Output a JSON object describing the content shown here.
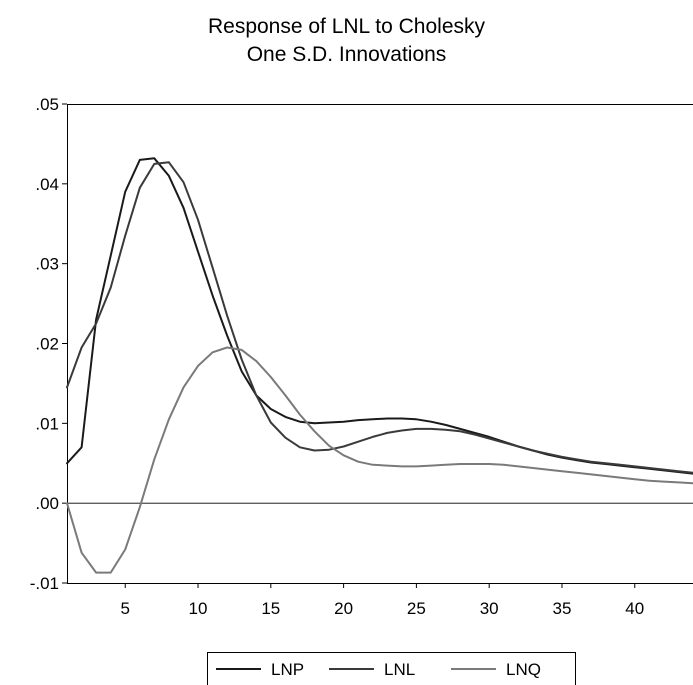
{
  "chart_data": {
    "type": "line",
    "title": "Response of LNL to Cholesky",
    "subtitle": "One S.D. Innovations",
    "xlabel": "",
    "ylabel": "",
    "xlim": [
      1,
      44
    ],
    "ylim": [
      -0.01,
      0.05
    ],
    "x_ticks": [
      5,
      10,
      15,
      20,
      25,
      30,
      35,
      40
    ],
    "x_tick_labels": [
      "5",
      "10",
      "15",
      "20",
      "25",
      "30",
      "35",
      "40"
    ],
    "y_ticks": [
      -0.01,
      0.0,
      0.01,
      0.02,
      0.03,
      0.04,
      0.05
    ],
    "y_tick_labels": [
      "-.01",
      ".00",
      ".01",
      ".02",
      ".03",
      ".04",
      ".05"
    ],
    "zero_line": true,
    "grid": false,
    "legend_position": "bottom-center",
    "series": [
      {
        "name": "LNP",
        "color": "#1a1a1a",
        "x": [
          1,
          2,
          3,
          4,
          5,
          6,
          7,
          8,
          9,
          10,
          11,
          12,
          13,
          14,
          15,
          16,
          17,
          18,
          19,
          20,
          21,
          22,
          23,
          24,
          25,
          26,
          27,
          28,
          29,
          30,
          31,
          32,
          33,
          34,
          35,
          36,
          37,
          38,
          39,
          40,
          41,
          42,
          43,
          44
        ],
        "y": [
          0.005,
          0.007,
          0.023,
          0.031,
          0.039,
          0.043,
          0.0432,
          0.041,
          0.037,
          0.0315,
          0.026,
          0.021,
          0.0165,
          0.0135,
          0.0118,
          0.0108,
          0.0102,
          0.01,
          0.0101,
          0.0102,
          0.0104,
          0.0105,
          0.0106,
          0.0106,
          0.0105,
          0.0102,
          0.0098,
          0.0093,
          0.0088,
          0.0083,
          0.0077,
          0.0071,
          0.0066,
          0.0061,
          0.0057,
          0.0054,
          0.0051,
          0.0049,
          0.0047,
          0.0045,
          0.0043,
          0.0041,
          0.0039,
          0.0037
        ]
      },
      {
        "name": "LNL",
        "color": "#3a3a3a",
        "x": [
          1,
          2,
          3,
          4,
          5,
          6,
          7,
          8,
          9,
          10,
          11,
          12,
          13,
          14,
          15,
          16,
          17,
          18,
          19,
          20,
          21,
          22,
          23,
          24,
          25,
          26,
          27,
          28,
          29,
          30,
          31,
          32,
          33,
          34,
          35,
          36,
          37,
          38,
          39,
          40,
          41,
          42,
          43,
          44
        ],
        "y": [
          0.0145,
          0.0195,
          0.0225,
          0.027,
          0.0335,
          0.0395,
          0.0425,
          0.0427,
          0.0402,
          0.0355,
          0.0295,
          0.0235,
          0.018,
          0.0135,
          0.0101,
          0.0082,
          0.007,
          0.0066,
          0.0067,
          0.0071,
          0.0077,
          0.0083,
          0.0088,
          0.0091,
          0.0093,
          0.0093,
          0.0092,
          0.009,
          0.0086,
          0.0081,
          0.0076,
          0.0071,
          0.0066,
          0.0062,
          0.0058,
          0.0055,
          0.0052,
          0.005,
          0.0048,
          0.0046,
          0.0044,
          0.0042,
          0.004,
          0.0038
        ]
      },
      {
        "name": "LNQ",
        "color": "#7a7a7a",
        "x": [
          1,
          2,
          3,
          4,
          5,
          6,
          7,
          8,
          9,
          10,
          11,
          12,
          13,
          14,
          15,
          16,
          17,
          18,
          19,
          20,
          21,
          22,
          23,
          24,
          25,
          26,
          27,
          28,
          29,
          30,
          31,
          32,
          33,
          34,
          35,
          36,
          37,
          38,
          39,
          40,
          41,
          42,
          43,
          44
        ],
        "y": [
          0.0,
          -0.0062,
          -0.0087,
          -0.0087,
          -0.0058,
          -0.0005,
          0.0055,
          0.0105,
          0.0145,
          0.0172,
          0.0189,
          0.0195,
          0.0192,
          0.0178,
          0.0158,
          0.0135,
          0.0111,
          0.009,
          0.0072,
          0.006,
          0.0052,
          0.0048,
          0.0047,
          0.0046,
          0.0046,
          0.0047,
          0.0048,
          0.0049,
          0.0049,
          0.0049,
          0.0048,
          0.0046,
          0.0044,
          0.0042,
          0.004,
          0.0038,
          0.0036,
          0.0034,
          0.0032,
          0.003,
          0.0028,
          0.0027,
          0.0026,
          0.0025
        ]
      }
    ]
  }
}
